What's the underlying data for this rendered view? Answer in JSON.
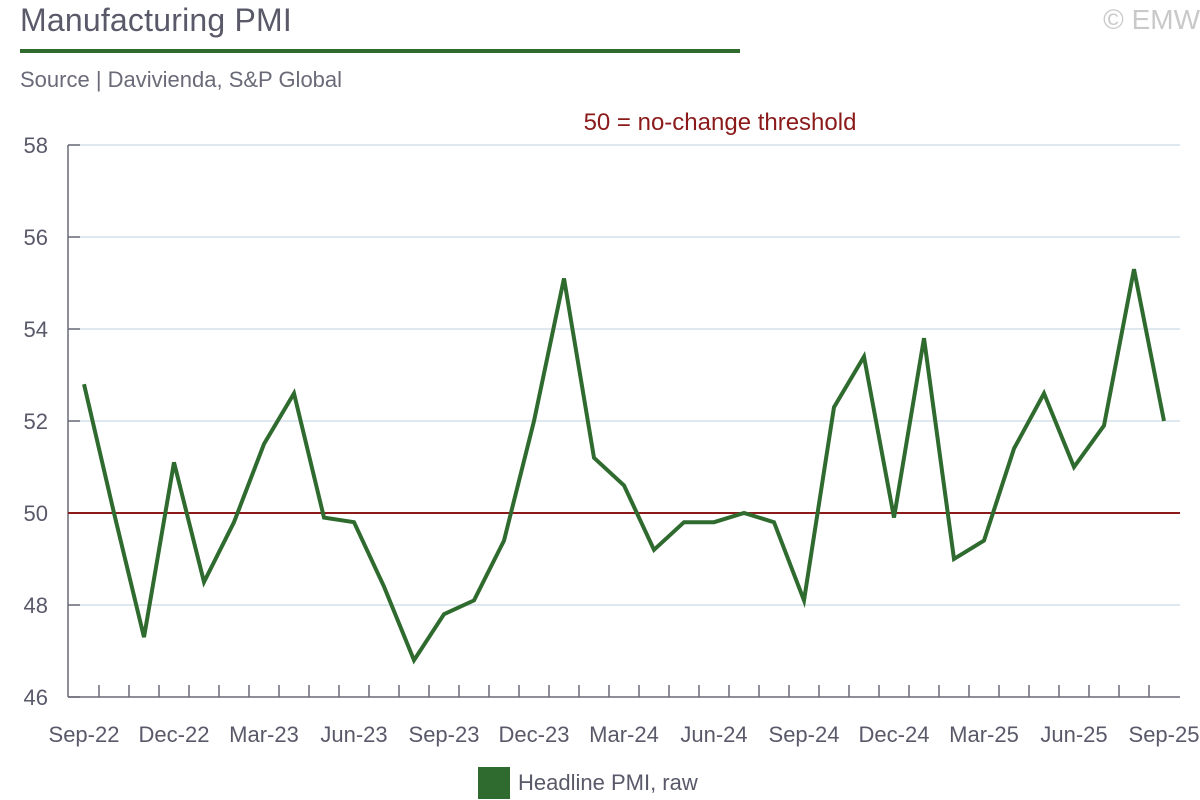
{
  "header": {
    "title": "Manufacturing PMI",
    "copyright": "© EMW",
    "source": "Source | Davivienda, S&P Global"
  },
  "chart_data": {
    "type": "line",
    "title": "Manufacturing PMI",
    "xlabel": "",
    "ylabel": "",
    "ylim": [
      46,
      58
    ],
    "yticks": [
      46,
      48,
      50,
      52,
      54,
      56,
      58
    ],
    "x": [
      "Sep-22",
      "Oct-22",
      "Nov-22",
      "Dec-22",
      "Jan-23",
      "Feb-23",
      "Mar-23",
      "Apr-23",
      "May-23",
      "Jun-23",
      "Jul-23",
      "Aug-23",
      "Sep-23",
      "Oct-23",
      "Nov-23",
      "Dec-23",
      "Jan-24",
      "Feb-24",
      "Mar-24",
      "Apr-24",
      "May-24",
      "Jun-24",
      "Jul-24",
      "Aug-24",
      "Sep-24",
      "Oct-24",
      "Nov-24",
      "Dec-24",
      "Jan-25",
      "Feb-25",
      "Mar-25",
      "Apr-25",
      "May-25",
      "Jun-25",
      "Jul-25",
      "Aug-25",
      "Sep-25"
    ],
    "xtick_labels": [
      "Sep-22",
      "Dec-22",
      "Mar-23",
      "Jun-23",
      "Sep-23",
      "Dec-23",
      "Mar-24",
      "Jun-24",
      "Sep-24",
      "Dec-24",
      "Mar-25",
      "Jun-25",
      "Sep-25"
    ],
    "series": [
      {
        "name": "Headline PMI, raw",
        "color": "#2f6b2f",
        "values": [
          52.8,
          50.0,
          47.3,
          51.1,
          48.5,
          49.8,
          51.5,
          52.6,
          49.9,
          49.8,
          48.4,
          46.8,
          47.8,
          48.1,
          49.4,
          52.0,
          55.1,
          51.2,
          50.6,
          49.2,
          49.8,
          49.8,
          50.0,
          49.8,
          48.1,
          52.3,
          53.4,
          49.9,
          53.8,
          49.0,
          49.4,
          51.4,
          52.6,
          51.0,
          51.9,
          55.3,
          52.0
        ]
      }
    ],
    "reference_line": {
      "value": 50,
      "label": "50 = no-change threshold",
      "color": "#8b1a1a"
    },
    "grid": true,
    "legend": "bottom-center"
  },
  "legend": {
    "label": "Headline PMI, raw"
  }
}
